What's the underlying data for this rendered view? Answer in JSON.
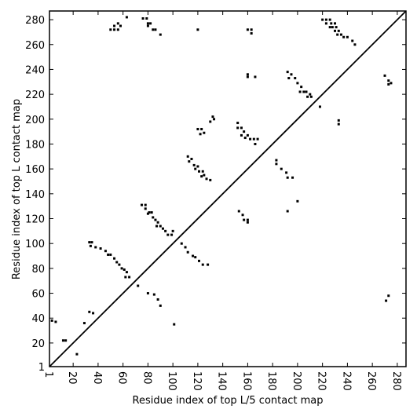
{
  "chart_data": {
    "type": "scatter",
    "xlabel": "Residue index of top L/5 contact map",
    "ylabel": "Residue index of top L contact map",
    "xlim": [
      1,
      287
    ],
    "ylim": [
      1,
      287
    ],
    "xticks": [
      1,
      20,
      40,
      60,
      80,
      100,
      120,
      140,
      160,
      180,
      200,
      220,
      240,
      260,
      280
    ],
    "yticks": [
      1,
      20,
      40,
      60,
      80,
      100,
      120,
      140,
      160,
      180,
      200,
      220,
      240,
      260,
      280
    ],
    "color": "#000000",
    "x": [
      50,
      53,
      56,
      53,
      56,
      58,
      63,
      76,
      79,
      80,
      82,
      80,
      84,
      86,
      90,
      120,
      160,
      163,
      163,
      220,
      223,
      226,
      223,
      227,
      230,
      226,
      228,
      231,
      230,
      233,
      232,
      235,
      237,
      240,
      244,
      246,
      160,
      160,
      166,
      192,
      195,
      193,
      198,
      200,
      203,
      202,
      205,
      207,
      210,
      208,
      211,
      218,
      233,
      233,
      270,
      273,
      275,
      273,
      120,
      123,
      122,
      125,
      130,
      132,
      133,
      152,
      152,
      155,
      157,
      155,
      160,
      158,
      162,
      165,
      168,
      166,
      112,
      115,
      113,
      117,
      118,
      120,
      121,
      124,
      125,
      127,
      130,
      123,
      183,
      183,
      187,
      191,
      192,
      196,
      75,
      78,
      78,
      81,
      83,
      80,
      84,
      86,
      88,
      87,
      90,
      92,
      94,
      96,
      99,
      100,
      153,
      156,
      157,
      160,
      160,
      192,
      200,
      33,
      35,
      34,
      38,
      42,
      46,
      48,
      50,
      53,
      55,
      57,
      59,
      61,
      63,
      62,
      65,
      107,
      110,
      112,
      116,
      118,
      121,
      124,
      128,
      72,
      80,
      85,
      88,
      90,
      101,
      33,
      36,
      29,
      3,
      6,
      12,
      14,
      23,
      273,
      271
    ],
    "values": [
      272,
      272,
      272,
      275,
      277,
      275,
      282,
      281,
      281,
      277,
      277,
      275,
      272,
      272,
      268,
      272,
      272,
      272,
      269,
      280,
      280,
      280,
      277,
      277,
      277,
      274,
      274,
      274,
      271,
      271,
      268,
      268,
      266,
      266,
      263,
      260,
      236,
      234,
      234,
      238,
      236,
      233,
      233,
      229,
      226,
      222,
      222,
      222,
      220,
      218,
      218,
      210,
      199,
      196,
      235,
      231,
      229,
      228,
      192,
      192,
      188,
      189,
      198,
      202,
      200,
      197,
      193,
      193,
      190,
      187,
      187,
      185,
      184,
      184,
      184,
      180,
      170,
      168,
      166,
      163,
      160,
      162,
      158,
      158,
      155,
      152,
      151,
      154,
      167,
      164,
      160,
      157,
      153,
      153,
      131,
      131,
      128,
      125,
      125,
      124,
      121,
      119,
      117,
      114,
      114,
      112,
      110,
      107,
      107,
      110,
      126,
      123,
      119,
      119,
      117,
      126,
      134,
      101,
      101,
      98,
      97,
      96,
      94,
      91,
      91,
      88,
      85,
      83,
      80,
      79,
      77,
      73,
      73,
      100,
      97,
      93,
      90,
      89,
      86,
      83,
      83,
      66,
      60,
      59,
      55,
      50,
      35,
      45,
      44,
      36,
      38,
      37,
      22,
      22,
      11,
      58,
      54
    ]
  }
}
